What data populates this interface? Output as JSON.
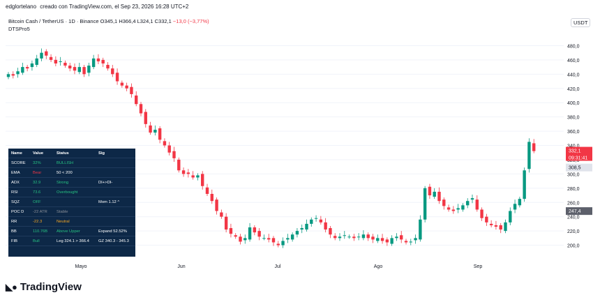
{
  "header": {
    "author": "edglortelano",
    "created_on": "creado con TradingView.com, el Sep 23, 2026 16:28 UTC+2"
  },
  "symbol": {
    "name": "Bitcoin Cash / TetherUS · 1D · Binance",
    "o": "O345,1",
    "h": "H366,4",
    "l": "L324,1",
    "c": "C332,1",
    "chg": "−13,0 (−3,77%)",
    "indicator": "DTSPro5"
  },
  "currency": "USDT",
  "brand": {
    "name": "TradingView"
  },
  "colors": {
    "up": "#089981",
    "down": "#f23645",
    "cloud": "#f7a1a6",
    "table_bg": "#0d2847",
    "volume_profile": "#b3d9f5"
  },
  "chart_data": {
    "type": "candlestick",
    "ylim": [
      180,
      500
    ],
    "y_ticks": [
      "200,0",
      "220,0",
      "240,0",
      "260,0",
      "280,0",
      "300,0",
      "320,0",
      "340,0",
      "360,0",
      "380,0",
      "400,0",
      "420,0",
      "440,0",
      "460,0",
      "480,0"
    ],
    "x_ticks": [
      "Mayo",
      "Jun",
      "Jul",
      "Ago",
      "Sep"
    ],
    "price_labels": {
      "last": "332,1",
      "countdown": "09:31:41",
      "level_a": "308,5",
      "level_b": "247,4"
    },
    "closes": [
      440,
      438,
      444,
      450,
      448,
      455,
      462,
      470,
      466,
      460,
      455,
      458,
      452,
      448,
      445,
      450,
      440,
      452,
      462,
      458,
      455,
      448,
      440,
      430,
      424,
      420,
      412,
      398,
      385,
      370,
      358,
      362,
      348,
      340,
      330,
      322,
      305,
      300,
      300,
      295,
      298,
      283,
      272,
      262,
      248,
      240,
      222,
      216,
      212,
      205,
      210,
      225,
      218,
      212,
      210,
      208,
      204,
      200,
      206,
      210,
      215,
      220,
      224,
      230,
      236,
      238,
      232,
      222,
      215,
      210,
      212,
      214,
      212,
      210,
      212,
      215,
      210,
      208,
      210,
      206,
      204,
      210,
      212,
      208,
      204,
      205,
      210,
      236,
      280,
      270,
      275,
      262,
      255,
      250,
      248,
      252,
      256,
      262,
      266,
      250,
      238,
      232,
      228,
      226,
      222,
      232,
      248,
      258,
      265,
      305,
      345,
      332
    ],
    "ohlc_note": "daily candles, last candle O345,1 H366,4 L324,1 C332,1"
  },
  "table": {
    "headers": [
      "Name",
      "Value",
      "Status",
      "Sig"
    ],
    "rows": [
      [
        "SCORE",
        "32%",
        "BULLISH",
        ""
      ],
      [
        "EMA",
        "Bear",
        "50 < 200",
        ""
      ],
      [
        "ADX",
        "32.9",
        "Strong",
        "DI+>DI-"
      ],
      [
        "RSI",
        "73.6",
        "Overbought",
        ""
      ],
      [
        "SQZ",
        "OFF",
        "",
        "Mom 1.12 ^"
      ],
      [
        "POC D",
        "-22 ATR",
        "Stable",
        ""
      ],
      [
        "RR",
        "-22.3",
        "Neutral",
        ""
      ],
      [
        "BB",
        "110.76B",
        "Above Upper",
        "Expand 52.52%"
      ],
      [
        "FIB",
        "Bull",
        "Leg 324.1 > 366.4",
        "GZ 340.3 - 345.3"
      ]
    ],
    "value_colors": [
      "#26c281",
      "#f23645",
      "#26c281",
      "#26c281",
      "#26c281",
      "#8a8f98",
      "#f5a623",
      "#26c281",
      "#26c281"
    ],
    "status_colors": [
      "#26c281",
      "#ffffff",
      "#26c281",
      "#26c281",
      "#ffffff",
      "#8a8f98",
      "#f5a623",
      "#26c281",
      "#ffffff"
    ]
  }
}
